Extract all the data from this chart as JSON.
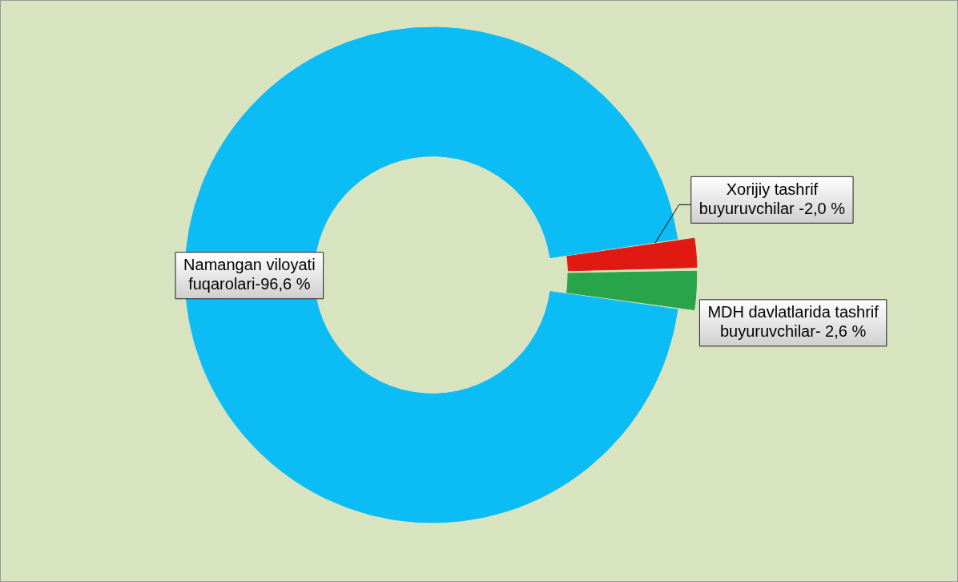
{
  "chart_data": {
    "type": "donut",
    "categories": [
      "Namangan viloyati fuqarolari-",
      "Xorijiy tashrif buyuruvchilar -",
      "MDH davlatlarida tashrif buyuruvchilar- "
    ],
    "values": [
      96.6,
      2.0,
      2.6
    ],
    "colors": [
      "#0bbcf5",
      "#e01a12",
      "#28a548"
    ],
    "value_labels": [
      "96,6 %",
      "2,0 %",
      "2,6 %"
    ]
  }
}
